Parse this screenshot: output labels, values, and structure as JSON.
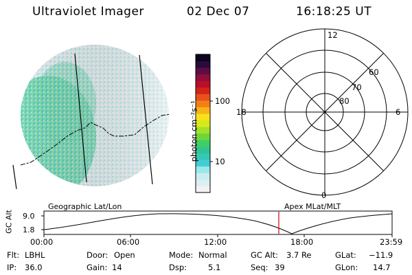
{
  "header": {
    "instrument": "Ultraviolet Imager",
    "date": "02 Dec 07",
    "time": "16:18:25 UT"
  },
  "colorbar": {
    "unit_label": "photon cm⁻²s⁻¹",
    "ticks": [
      "100",
      "10"
    ],
    "colors": [
      "#f2f2f2",
      "#ddeef3",
      "#c9eef0",
      "#9ae8ea",
      "#42cdd3",
      "#35c8b6",
      "#2fc493",
      "#3fcf65",
      "#6fd63a",
      "#a4e02a",
      "#d6ea1a",
      "#f6e21a",
      "#f7b31a",
      "#f38016",
      "#e8521a",
      "#d42418",
      "#b80f2a",
      "#8f0f3a",
      "#5e0d44",
      "#2c0a3a",
      "#0b0420"
    ]
  },
  "polar_grid": {
    "mlt_labels": {
      "top": "12",
      "left": "18",
      "right": "6",
      "bottom": "0"
    },
    "lat_labels": [
      "60",
      "70",
      "80"
    ]
  },
  "altitude_panel": {
    "left_title": "Geographic Lat/Lon",
    "right_title": "Apex MLat/MLT",
    "ylabel": "GC Alt",
    "yticks": [
      "9.0",
      "1.8"
    ],
    "xticks": [
      "00:00",
      "06:00",
      "12:00",
      "18:00",
      "23:59"
    ]
  },
  "status": {
    "row1": [
      {
        "label": "Flt:",
        "value": "LBHL"
      },
      {
        "label": "Door:",
        "value": "Open"
      },
      {
        "label": "Mode:",
        "value": "Normal"
      },
      {
        "label": "GC Alt:",
        "value": "3.7 Re"
      },
      {
        "label": "GLat:",
        "value": "−11.9"
      }
    ],
    "row2": [
      {
        "label": "IP:",
        "value": "36.0"
      },
      {
        "label": "Gain:",
        "value": "14"
      },
      {
        "label": "Dsp:",
        "value": "5.1"
      },
      {
        "label": "Seq:",
        "value": "39"
      },
      {
        "label": "GLon:",
        "value": "14.7"
      }
    ]
  }
}
